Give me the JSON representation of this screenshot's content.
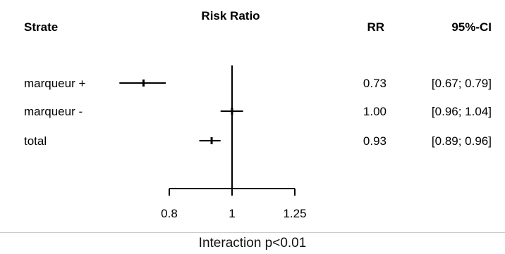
{
  "chart_data": {
    "type": "forest",
    "headers": {
      "strata": "Strate",
      "plot": "Risk Ratio",
      "rr": "RR",
      "ci": "95%-CI"
    },
    "rows": [
      {
        "label": "marqueur +",
        "rr": 0.73,
        "lo": 0.67,
        "hi": 0.79,
        "rr_text": "0.73",
        "ci_text": "[0.67; 0.79]"
      },
      {
        "label": "marqueur -",
        "rr": 1.0,
        "lo": 0.96,
        "hi": 1.04,
        "rr_text": "1.00",
        "ci_text": "[0.96; 1.04]"
      },
      {
        "label": "total",
        "rr": 0.93,
        "lo": 0.89,
        "hi": 0.96,
        "rr_text": "0.93",
        "ci_text": "[0.89; 0.96]"
      }
    ],
    "x_scale": "log",
    "x_ticks": [
      0.8,
      1,
      1.25
    ],
    "x_tick_labels": [
      "0.8",
      "1",
      "1.25"
    ],
    "reference_line": 1,
    "line_color": "#000000"
  },
  "footer": {
    "note": "Interaction p<0.01"
  }
}
